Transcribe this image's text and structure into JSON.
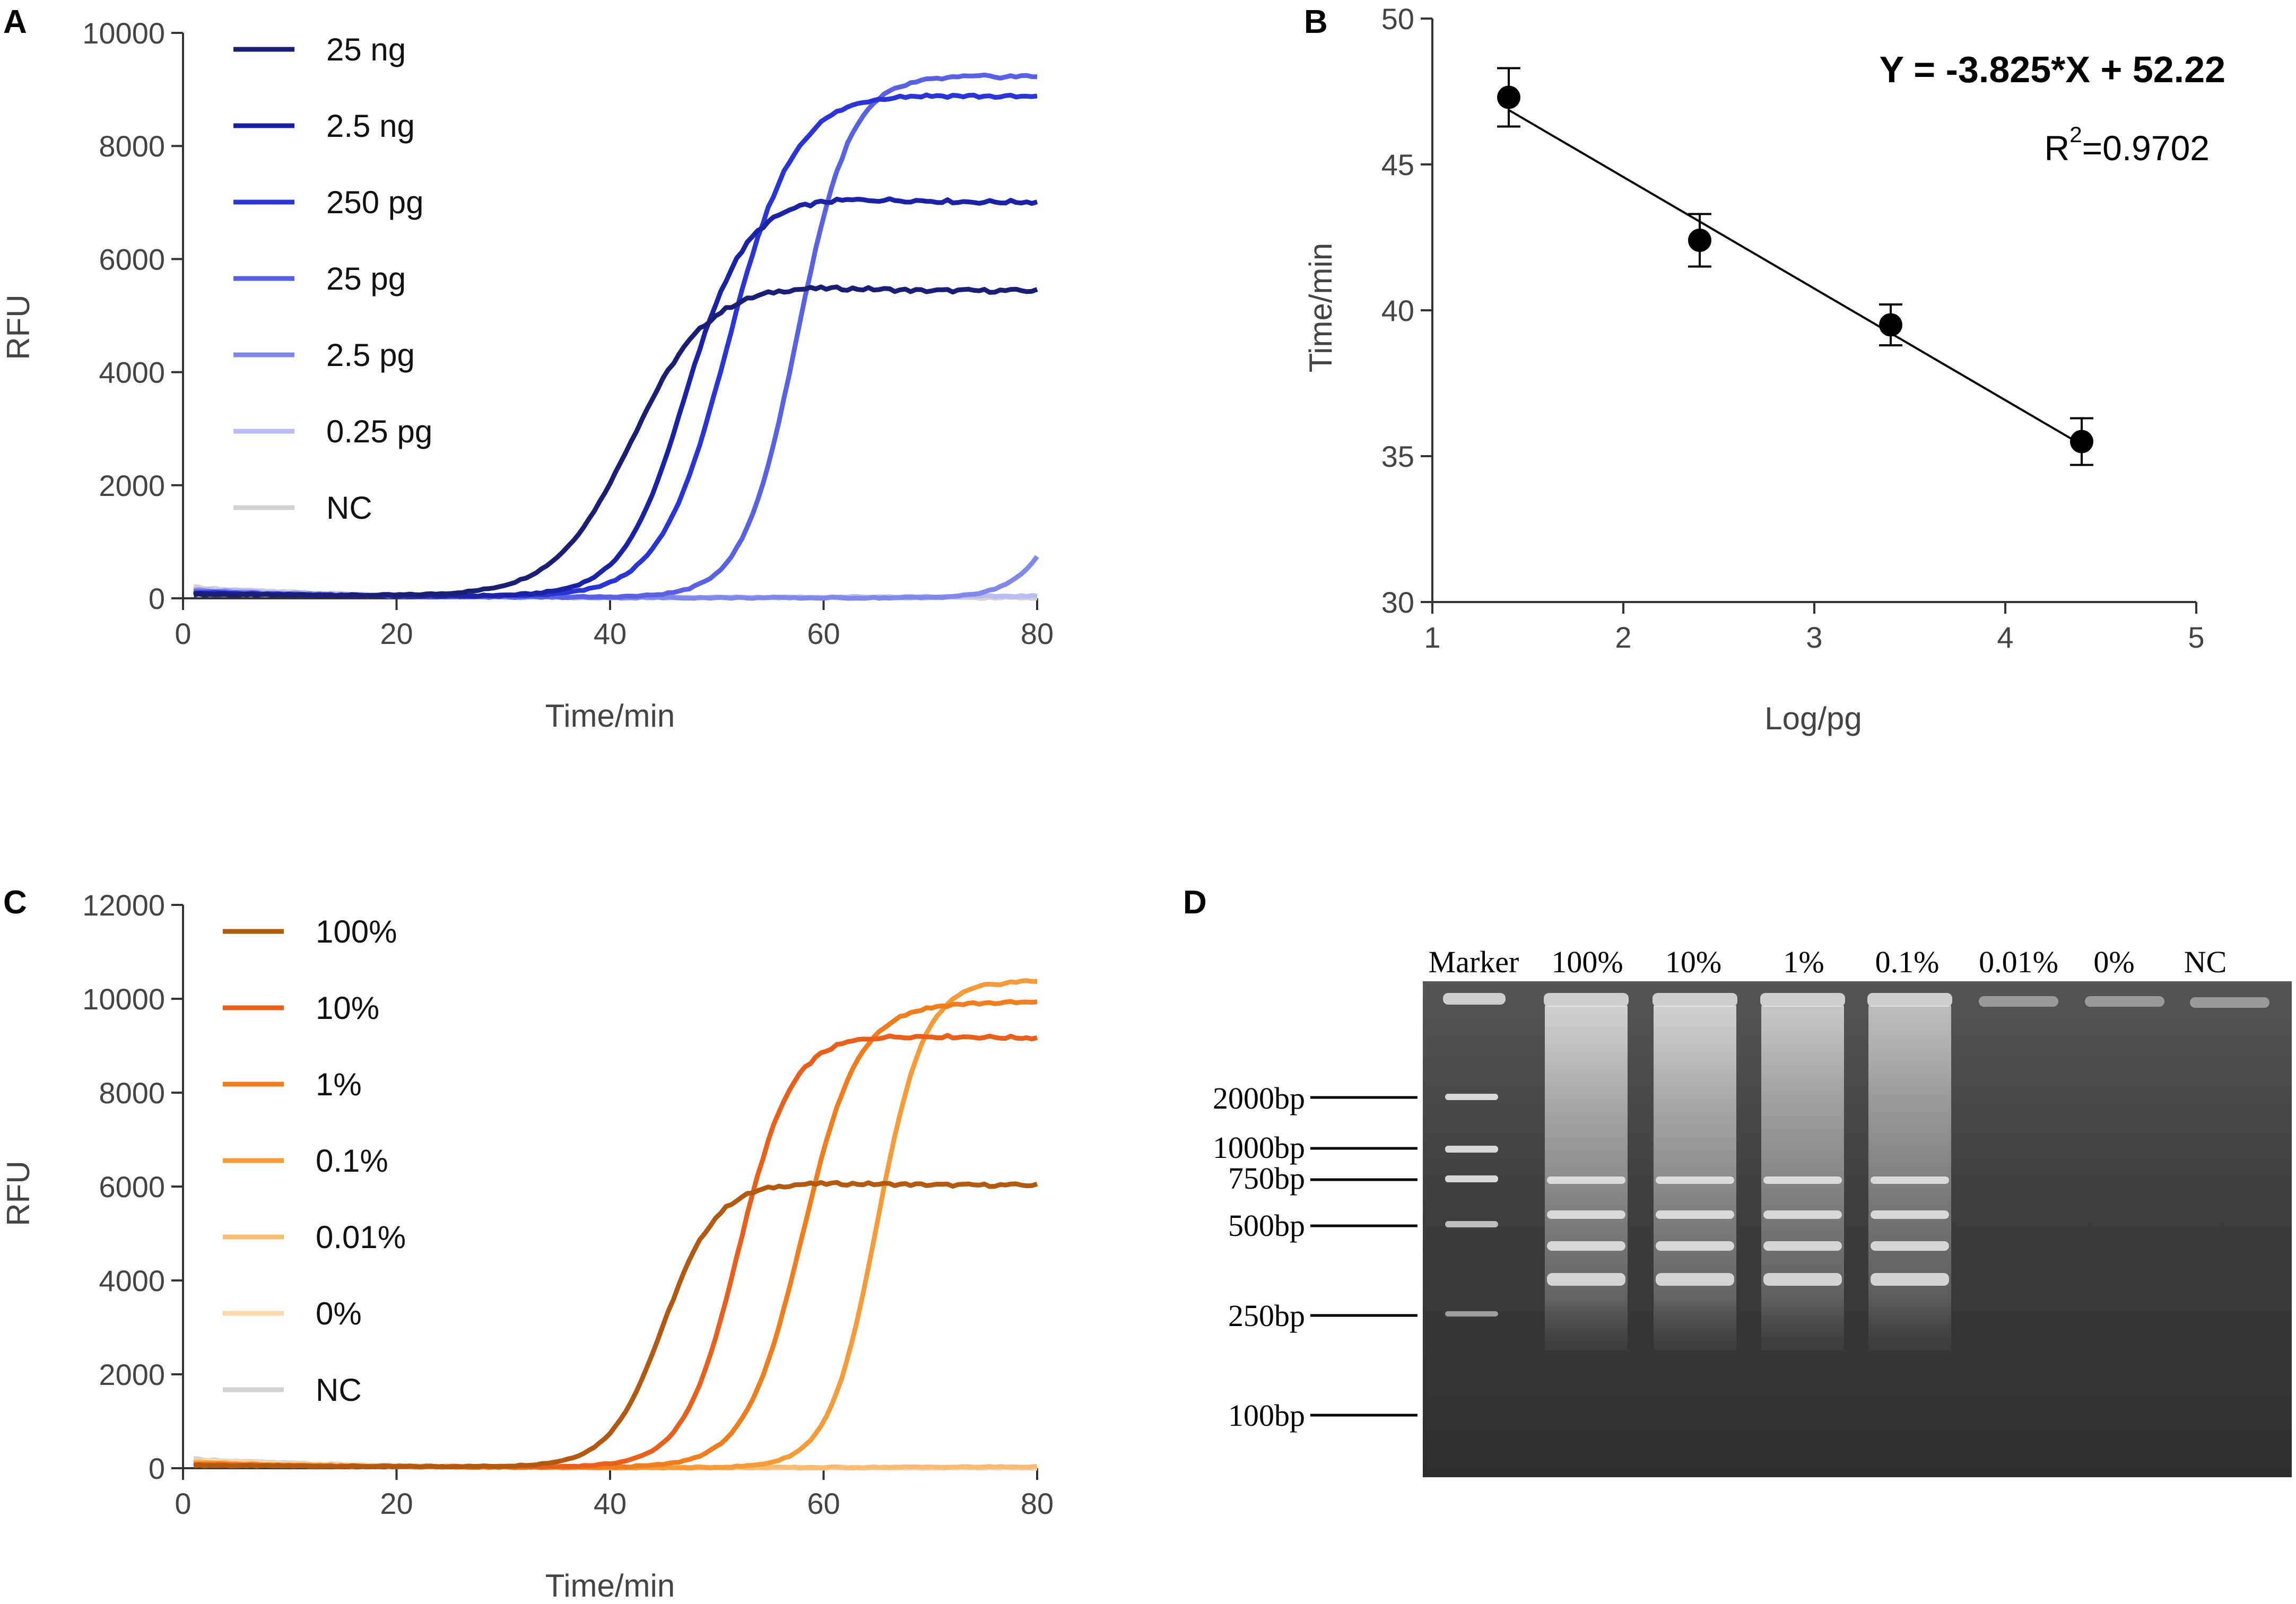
{
  "chart_data": [
    {
      "panel": "A",
      "type": "line",
      "title": "",
      "xlabel": "Time/min",
      "ylabel": "RFU",
      "xlim": [
        0,
        80
      ],
      "ylim": [
        0,
        10000
      ],
      "xticks": [
        0,
        20,
        40,
        60,
        80
      ],
      "yticks": [
        0,
        2000,
        4000,
        6000,
        8000,
        10000
      ],
      "legend_position": "top-left",
      "series": [
        {
          "name": "25 ng",
          "color": "#1b1f74",
          "base": 40,
          "plateau": 5500,
          "mid": 42,
          "k": 0.28,
          "end": 5400
        },
        {
          "name": "2.5 ng",
          "color": "#1c22a6",
          "base": 30,
          "plateau": 7050,
          "mid": 47,
          "k": 0.35,
          "end": 6980
        },
        {
          "name": "250 pg",
          "color": "#2b34d6",
          "base": 20,
          "plateau": 8900,
          "mid": 51,
          "k": 0.32,
          "end": 8850
        },
        {
          "name": "25 pg",
          "color": "#5a62e3",
          "base": 10,
          "plateau": 9220,
          "mid": 57.5,
          "k": 0.4,
          "end": 9220
        },
        {
          "name": "2.5 pg",
          "color": "#8088ea",
          "base": 5,
          "plateau": 2500,
          "mid": 82,
          "k": 0.45,
          "end": 750
        },
        {
          "name": "0.25 pg",
          "color": "#b7bcf2",
          "base": 0,
          "plateau": 0,
          "mid": 200,
          "k": 0.3,
          "end": 40
        },
        {
          "name": "NC",
          "color": "#d2d2d2",
          "base": 0,
          "plateau": 0,
          "mid": 200,
          "k": 0.3,
          "end": 10
        }
      ]
    },
    {
      "panel": "B",
      "type": "scatter",
      "title": "",
      "xlabel": "Log/pg",
      "ylabel": "Time/min",
      "xlim": [
        1,
        5
      ],
      "ylim": [
        30,
        50
      ],
      "xticks": [
        1,
        2,
        3,
        4,
        5
      ],
      "yticks": [
        30,
        35,
        40,
        45,
        50
      ],
      "points": [
        {
          "x": 1.4,
          "y": 47.3,
          "err": 1.0
        },
        {
          "x": 2.4,
          "y": 42.4,
          "err": 0.9
        },
        {
          "x": 3.4,
          "y": 39.5,
          "err": 0.7
        },
        {
          "x": 4.4,
          "y": 35.5,
          "err": 0.8
        }
      ],
      "fit": {
        "slope": -3.825,
        "intercept": 52.22,
        "x_range": [
          1.4,
          4.4
        ]
      },
      "equation": "Y = -3.825*X + 52.22",
      "r2_label": "R",
      "r2_sup": "2",
      "r2_value": "=0.9702"
    },
    {
      "panel": "C",
      "type": "line",
      "title": "",
      "xlabel": "Time/min",
      "ylabel": "RFU",
      "xlim": [
        0,
        80
      ],
      "ylim": [
        0,
        12000
      ],
      "xticks": [
        0,
        20,
        40,
        60,
        80
      ],
      "yticks": [
        0,
        2000,
        4000,
        6000,
        8000,
        10000,
        12000
      ],
      "legend_position": "top-left",
      "series": [
        {
          "name": "100%",
          "color": "#b35a12",
          "base": 30,
          "plateau": 6050,
          "mid": 45,
          "k": 0.4,
          "end": 6000
        },
        {
          "name": "10%",
          "color": "#e8601c",
          "base": 20,
          "plateau": 9200,
          "mid": 52,
          "k": 0.4,
          "end": 9150
        },
        {
          "name": "1%",
          "color": "#f07d1e",
          "base": 10,
          "plateau": 9900,
          "mid": 58,
          "k": 0.38,
          "end": 9920
        },
        {
          "name": "0.1%",
          "color": "#f59b3a",
          "base": 5,
          "plateau": 10380,
          "mid": 65,
          "k": 0.45,
          "end": 10380
        },
        {
          "name": "0.01%",
          "color": "#f8bc74",
          "base": 0,
          "plateau": 0,
          "mid": 200,
          "k": 0.3,
          "end": 30
        },
        {
          "name": "0%",
          "color": "#fbd9ad",
          "base": 0,
          "plateau": 0,
          "mid": 200,
          "k": 0.3,
          "end": 10
        },
        {
          "name": "NC",
          "color": "#d2d2d2",
          "base": 0,
          "plateau": 0,
          "mid": 200,
          "k": 0.3,
          "end": 0
        }
      ]
    }
  ],
  "panel_labels": {
    "a": "A",
    "b": "B",
    "c": "C",
    "d": "D"
  },
  "gel": {
    "lanes": [
      "Marker",
      "100%",
      "10%",
      "1%",
      "0.1%",
      "0.01%",
      "0%",
      "NC"
    ],
    "markers": [
      "2000bp",
      "1000bp",
      "750bp",
      "500bp",
      "250bp",
      "100bp"
    ]
  }
}
